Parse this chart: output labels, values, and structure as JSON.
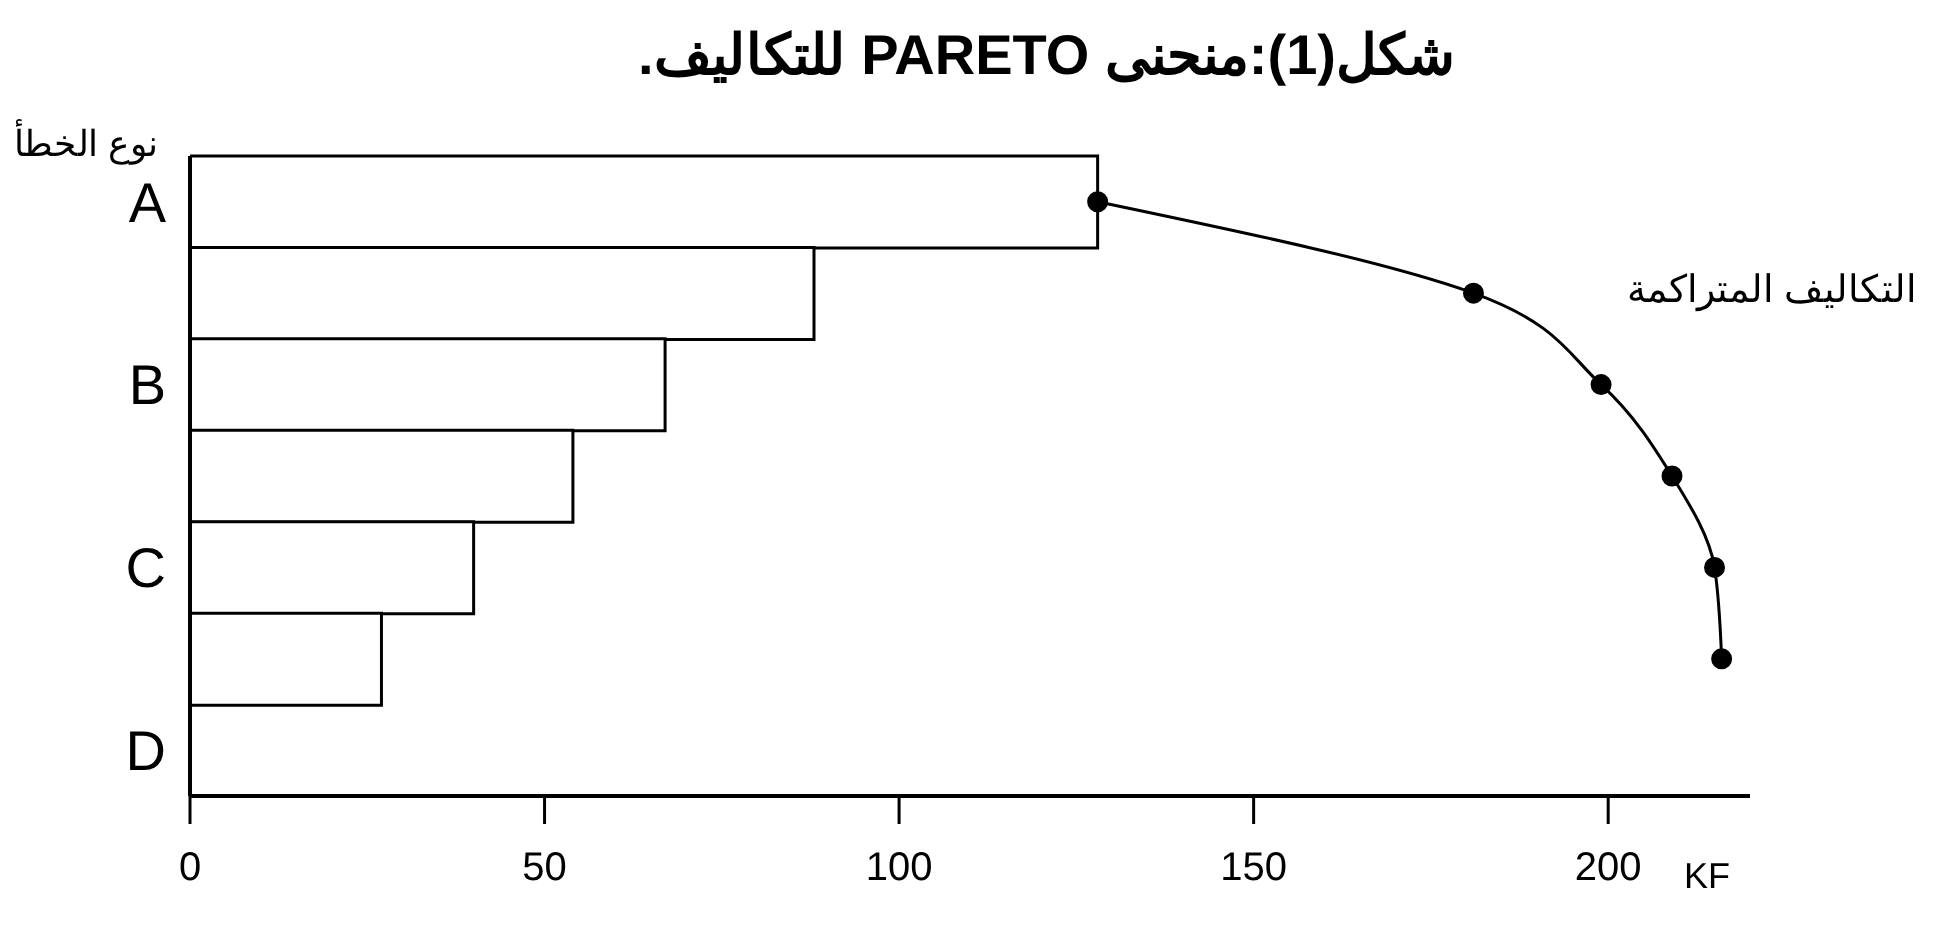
{
  "chart_data": {
    "type": "bar",
    "orientation": "horizontal",
    "title": "شكل(1):منحنى PARETO للتكاليف.",
    "xlabel": "KF",
    "ylabel": "نوع الخطأ",
    "annotations": [
      "التكاليف المتراكمة"
    ],
    "categories": [
      "A",
      null,
      "B",
      null,
      "C",
      null,
      "D"
    ],
    "series": [
      {
        "type": "bar",
        "color": "#ffffff",
        "values": [
          128,
          88,
          67,
          54,
          40,
          27,
          null
        ]
      },
      {
        "type": "line",
        "color": "#000000",
        "marker": "circle",
        "values": [
          128,
          181,
          199,
          209,
          215,
          216,
          null
        ]
      }
    ],
    "xlim": [
      0,
      220
    ],
    "xticks": [
      0,
      50,
      100,
      150,
      200
    ],
    "grid": false
  }
}
